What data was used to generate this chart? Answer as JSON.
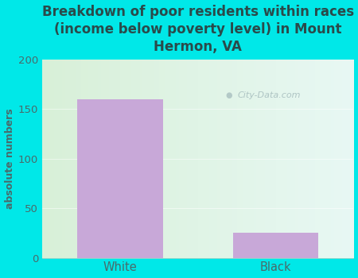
{
  "categories": [
    "White",
    "Black"
  ],
  "values": [
    160,
    25
  ],
  "bar_color": "#c8a8d8",
  "title": "Breakdown of poor residents within races\n(income below poverty level) in Mount\nHermon, VA",
  "ylabel": "absolute numbers",
  "ylim": [
    0,
    200
  ],
  "yticks": [
    0,
    50,
    100,
    150,
    200
  ],
  "background_color": "#00e8e8",
  "gradient_left": "#d8f0d8",
  "gradient_right": "#e8f8f4",
  "title_color": "#2a4a4a",
  "axis_label_color": "#4a6a6a",
  "tick_color": "#4a6a6a",
  "watermark_text": "City-Data.com",
  "title_fontsize": 12,
  "ylabel_fontsize": 9,
  "bar_width": 0.55
}
